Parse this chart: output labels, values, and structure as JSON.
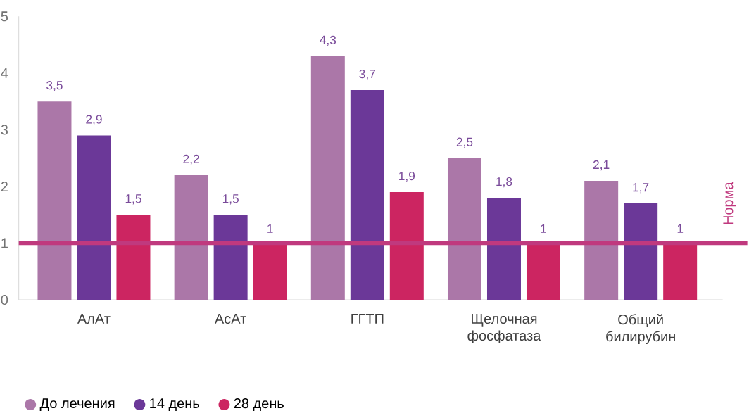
{
  "chart_data": {
    "type": "bar",
    "categories": [
      "АлАт",
      "АсАт",
      "ГГТП",
      "Щелочная фосфатаза",
      "Общий билирубин"
    ],
    "series": [
      {
        "name": "До лечения",
        "color": "#ab77a8",
        "values": [
          3.5,
          2.2,
          4.3,
          2.5,
          2.1
        ],
        "value_labels": [
          "3,5",
          "2,2",
          "4,3",
          "2,5",
          "2,1"
        ]
      },
      {
        "name": "14 день",
        "color": "#6b3898",
        "values": [
          2.9,
          1.5,
          3.7,
          1.8,
          1.7
        ],
        "value_labels": [
          "2,9",
          "1,5",
          "3,7",
          "1,8",
          "1,7"
        ]
      },
      {
        "name": "28 день",
        "color": "#cc2561",
        "values": [
          1.5,
          1,
          1.9,
          1,
          1
        ],
        "value_labels": [
          "1,5",
          "1",
          "1,9",
          "1",
          "1"
        ]
      }
    ],
    "ylim": [
      0,
      5
    ],
    "yticks": [
      0,
      1,
      2,
      3,
      4,
      5
    ],
    "grid": false,
    "legend": "bottom left",
    "ref_lines": [
      {
        "axis": "y",
        "value": 1,
        "label": "Норма",
        "color": "#c0397e"
      }
    ]
  }
}
